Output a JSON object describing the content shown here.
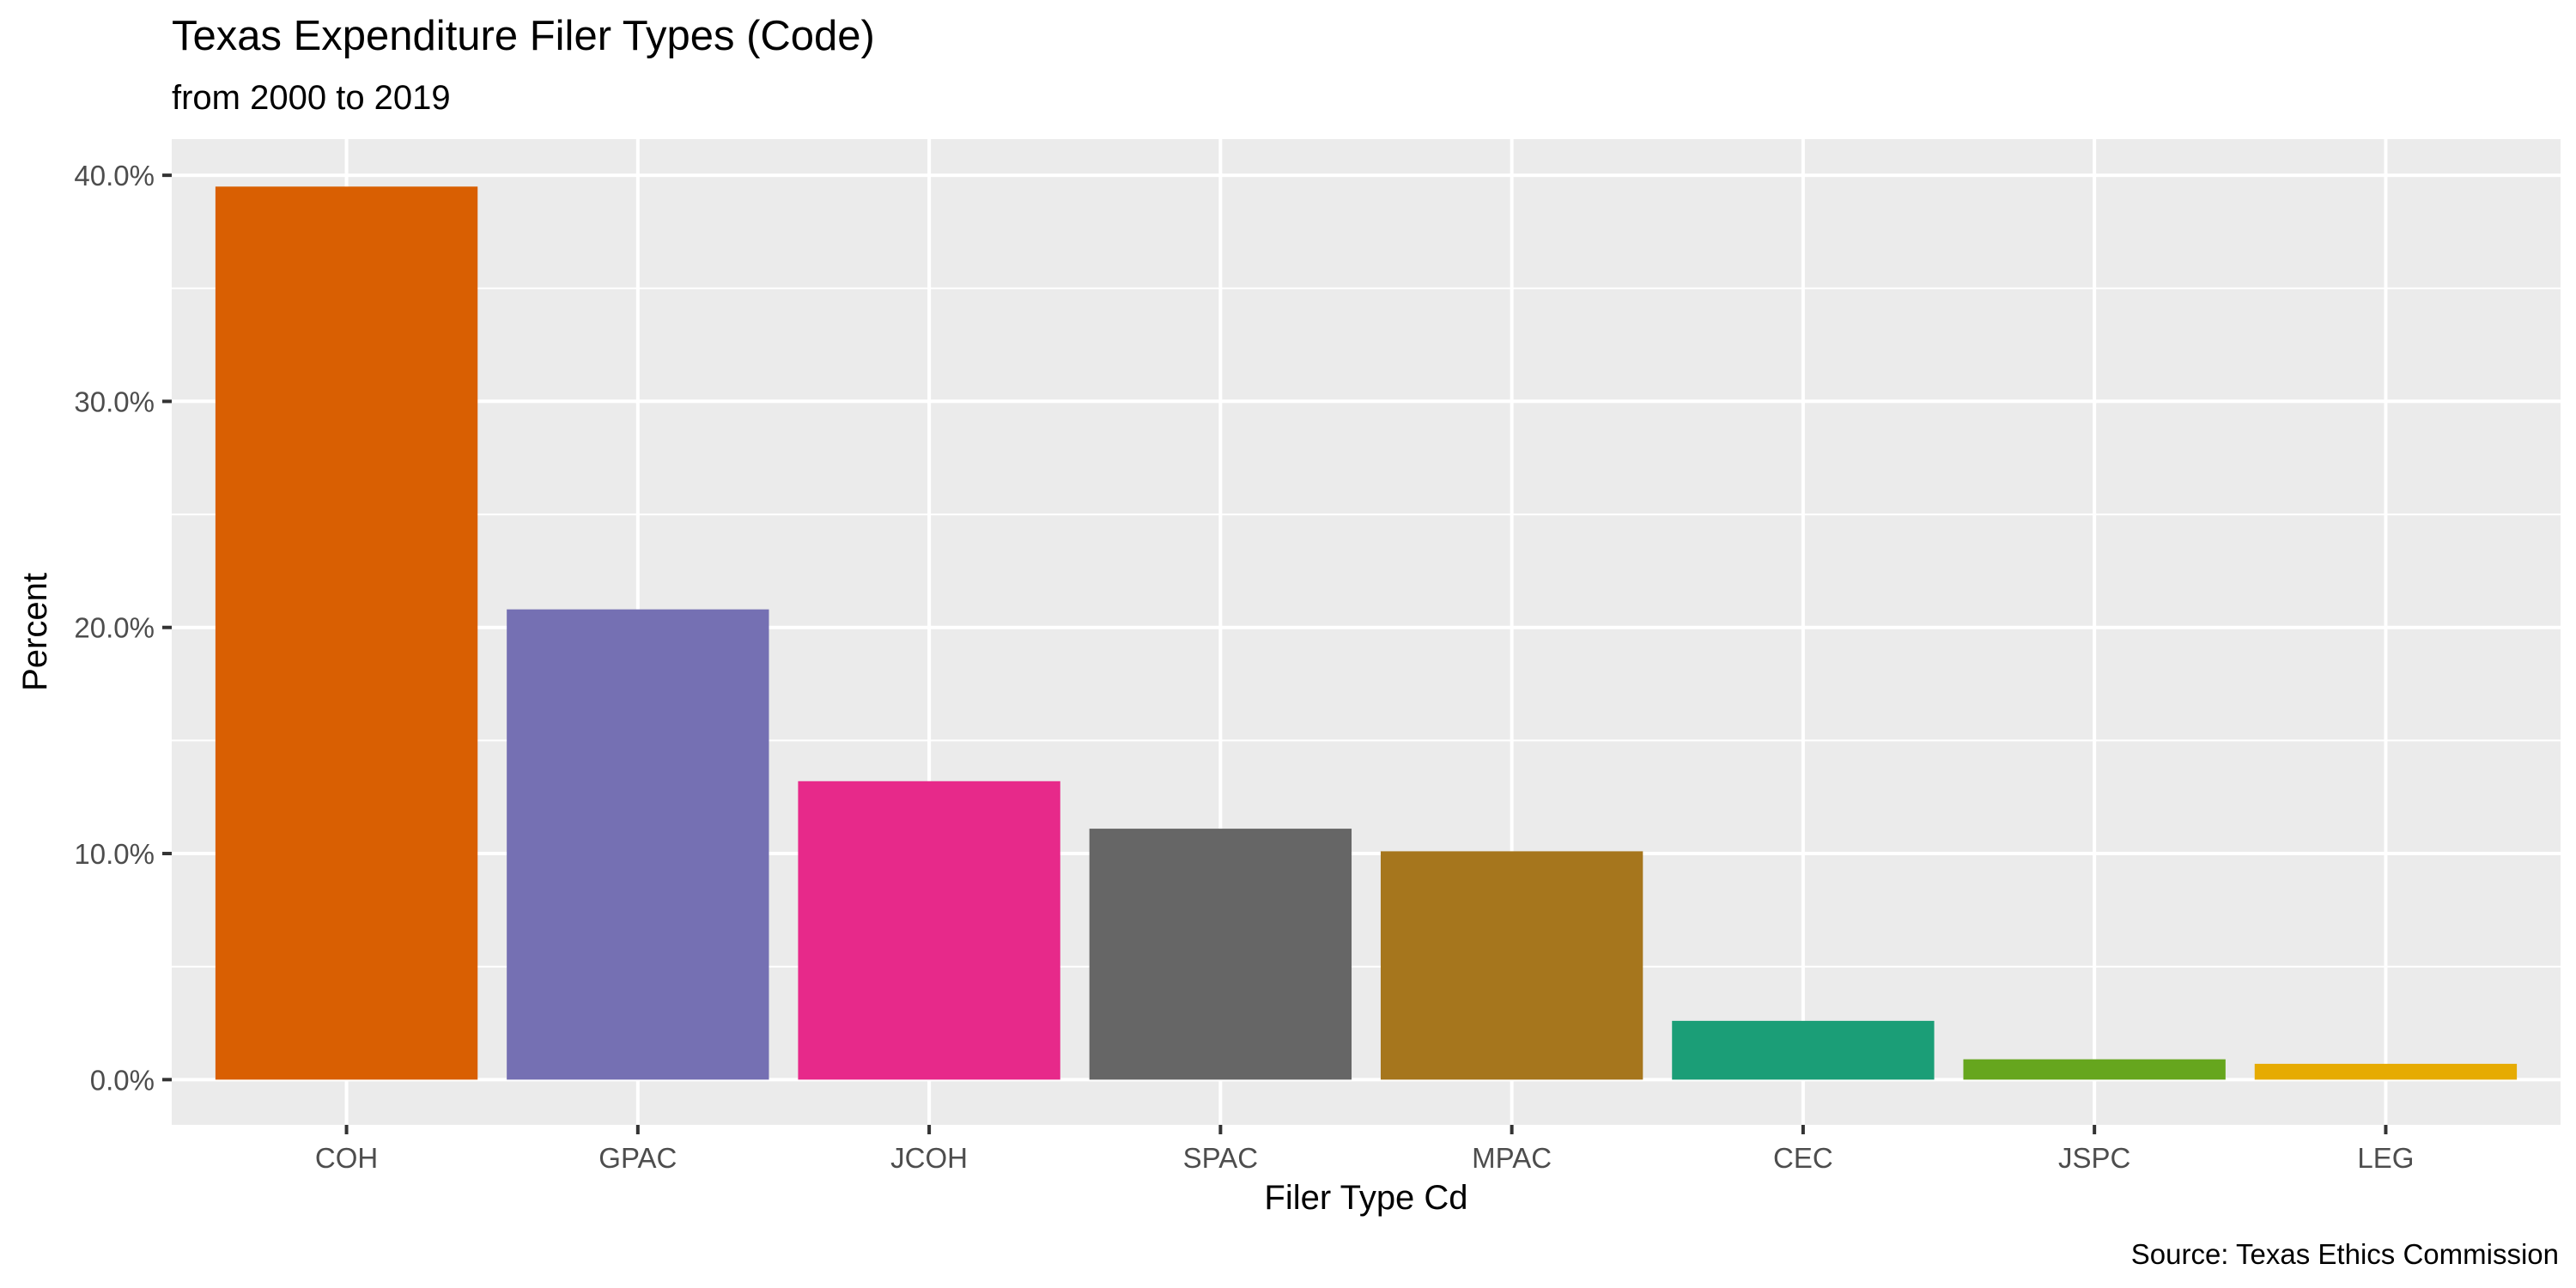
{
  "chart_data": {
    "type": "bar",
    "title": "Texas Expenditure Filer Types (Code)",
    "subtitle": "from 2000 to 2019",
    "xlabel": "Filer Type Cd",
    "ylabel": "Percent",
    "caption": "Source: Texas Ethics Commission",
    "categories": [
      "COH",
      "GPAC",
      "JCOH",
      "SPAC",
      "MPAC",
      "CEC",
      "JSPC",
      "LEG"
    ],
    "values": [
      39.5,
      20.8,
      13.2,
      11.1,
      10.1,
      2.6,
      0.9,
      0.7
    ],
    "colors": [
      "#D95F02",
      "#7570B3",
      "#E7298A",
      "#666666",
      "#A6761D",
      "#1B9E77",
      "#66A61E",
      "#E6AB02"
    ],
    "y_ticks": [
      0,
      10,
      20,
      30,
      40
    ],
    "y_tick_labels": [
      "0.0%",
      "10.0%",
      "20.0%",
      "30.0%",
      "40.0%"
    ],
    "ylim": [
      -2.0,
      41.6
    ],
    "grid": true,
    "panel_background": "#EBEBEB",
    "grid_color": "#FFFFFF",
    "legend": "none"
  }
}
